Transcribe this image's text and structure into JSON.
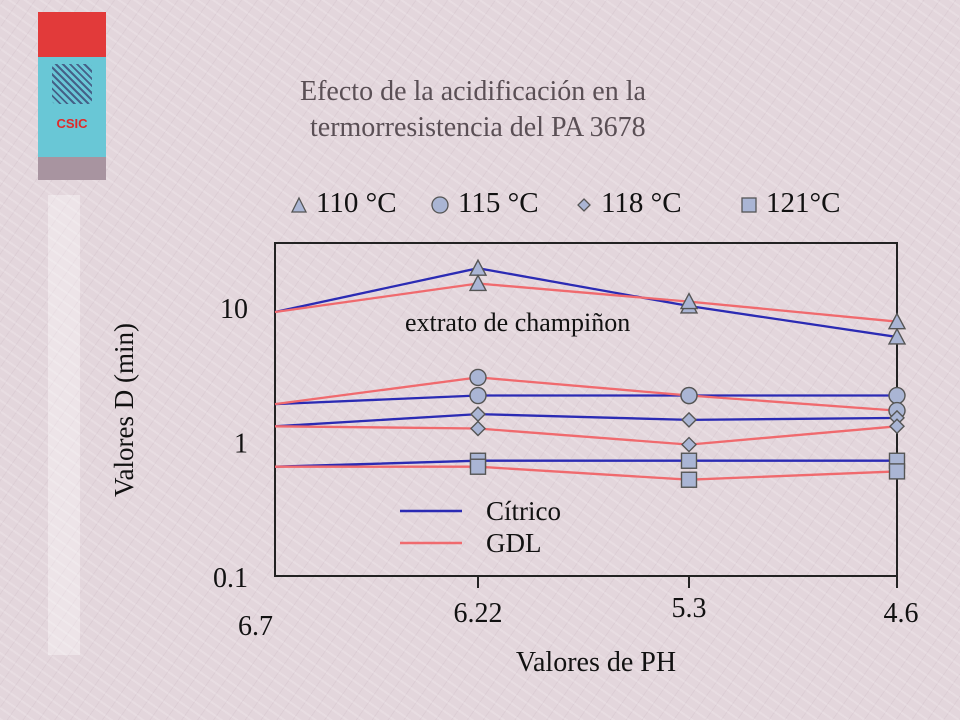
{
  "title_line1": "Efecto de la acidificación en la",
  "title_line2": "termorresistencia del PA 3678",
  "logo_text": "CSIC",
  "temperature_legend": [
    "110 °C",
    "115 °C",
    "118 °C",
    "121°C"
  ],
  "annotation": "extrato de champiñon",
  "colors": {
    "citrico": "#2b2bb4",
    "gdl": "#f06a6e",
    "marker_fill": "#aab5d4",
    "marker_stroke": "#555555"
  },
  "chart_data": {
    "type": "line",
    "xlabel": "Valores de PH",
    "ylabel": "Valores D (min)",
    "y_scale": "log",
    "ylim": [
      0.1,
      30
    ],
    "x": [
      "6.7",
      "6.22",
      "5.3",
      "4.6"
    ],
    "yticks": [
      "10",
      "1",
      "0.1"
    ],
    "acid_legend": [
      "Cítrico",
      "GDL"
    ],
    "series": [
      {
        "temperature": "110 °C",
        "acid": "Cítrico",
        "values": [
          9.2,
          19.5,
          10.2,
          6.0
        ]
      },
      {
        "temperature": "110 °C",
        "acid": "GDL",
        "values": [
          9.2,
          15.0,
          11.0,
          7.8
        ]
      },
      {
        "temperature": "115 °C",
        "acid": "Cítrico",
        "values": [
          1.9,
          2.2,
          2.2,
          2.2
        ]
      },
      {
        "temperature": "115 °C",
        "acid": "GDL",
        "values": [
          1.9,
          3.0,
          2.2,
          1.7
        ]
      },
      {
        "temperature": "118 °C",
        "acid": "Cítrico",
        "values": [
          1.3,
          1.6,
          1.45,
          1.5
        ]
      },
      {
        "temperature": "118 °C",
        "acid": "GDL",
        "values": [
          1.3,
          1.25,
          0.95,
          1.3
        ]
      },
      {
        "temperature": "121°C",
        "acid": "Cítrico",
        "values": [
          0.65,
          0.72,
          0.72,
          0.72
        ]
      },
      {
        "temperature": "121°C",
        "acid": "GDL",
        "values": [
          0.65,
          0.65,
          0.52,
          0.6
        ]
      }
    ]
  }
}
